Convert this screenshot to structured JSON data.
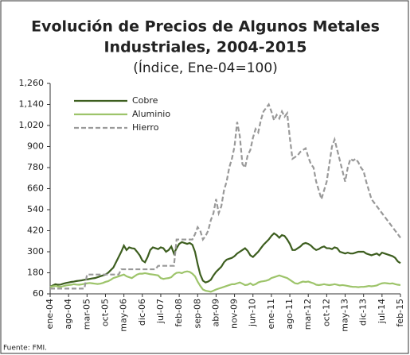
{
  "chart_data": {
    "type": "line",
    "title": [
      "Evolución de Precios de Algunos Metales",
      "Industriales, 2004-2015"
    ],
    "subtitle": "(Índice, Ene-04=100)",
    "source": "Fuente: FMI.",
    "legend": "upper left",
    "categories": [
      "ene-04",
      null,
      null,
      null,
      null,
      null,
      null,
      "ago-04",
      null,
      null,
      null,
      null,
      null,
      null,
      "mar-05",
      null,
      null,
      null,
      null,
      null,
      null,
      "oct-05",
      null,
      null,
      null,
      null,
      null,
      null,
      "may-06",
      null,
      null,
      null,
      null,
      null,
      null,
      "dic-06",
      null,
      null,
      null,
      null,
      null,
      null,
      "jul-07",
      null,
      null,
      null,
      null,
      null,
      null,
      "feb-08",
      null,
      null,
      null,
      null,
      null,
      null,
      "sep-08",
      null,
      null,
      null,
      null,
      null,
      null,
      "abr-09",
      null,
      null,
      null,
      null,
      null,
      null,
      "nov-09",
      null,
      null,
      null,
      null,
      null,
      null,
      "jun-10",
      null,
      null,
      null,
      null,
      null,
      null,
      "ene-11",
      null,
      null,
      null,
      null,
      null,
      null,
      "ago-11",
      null,
      null,
      null,
      null,
      null,
      null,
      "mar-12",
      null,
      null,
      null,
      null,
      null,
      null,
      "oct-12",
      null,
      null,
      null,
      null,
      null,
      null,
      "may-13",
      null,
      null,
      null,
      null,
      null,
      null,
      "dic-13",
      null,
      null,
      null,
      null,
      null,
      null,
      "jul-14",
      null,
      null,
      null,
      null,
      null,
      null,
      "feb-15"
    ],
    "series": [
      {
        "name": "Cobre",
        "color": "#3d5e1f",
        "dash": false,
        "values": [
          100,
          108,
          115,
          112,
          113,
          118,
          122,
          125,
          128,
          130,
          133,
          135,
          137,
          140,
          142,
          145,
          148,
          150,
          155,
          160,
          165,
          170,
          180,
          195,
          210,
          240,
          270,
          300,
          335,
          310,
          325,
          320,
          318,
          300,
          280,
          250,
          240,
          270,
          310,
          325,
          320,
          315,
          325,
          320,
          300,
          310,
          330,
          290,
          320,
          345,
          355,
          350,
          345,
          350,
          340,
          300,
          230,
          170,
          135,
          125,
          130,
          140,
          165,
          185,
          200,
          215,
          240,
          255,
          260,
          265,
          275,
          290,
          300,
          310,
          320,
          305,
          280,
          270,
          285,
          300,
          320,
          340,
          355,
          370,
          390,
          405,
          395,
          380,
          395,
          390,
          370,
          345,
          310,
          310,
          320,
          330,
          345,
          350,
          345,
          335,
          320,
          310,
          315,
          325,
          330,
          320,
          320,
          315,
          325,
          320,
          300,
          295,
          290,
          295,
          290,
          290,
          295,
          300,
          300,
          300,
          290,
          285,
          280,
          285,
          290,
          280,
          295,
          290,
          285,
          280,
          275,
          265,
          245,
          235
        ]
      },
      {
        "name": "Aluminio",
        "color": "#9dc46a",
        "dash": false,
        "values": [
          100,
          103,
          105,
          102,
          100,
          104,
          108,
          110,
          112,
          115,
          113,
          112,
          114,
          117,
          120,
          122,
          120,
          118,
          116,
          118,
          122,
          128,
          132,
          140,
          150,
          155,
          160,
          165,
          170,
          160,
          155,
          150,
          160,
          170,
          175,
          175,
          178,
          175,
          172,
          170,
          168,
          165,
          150,
          145,
          148,
          150,
          155,
          170,
          180,
          182,
          178,
          185,
          188,
          185,
          175,
          160,
          130,
          105,
          85,
          78,
          75,
          72,
          78,
          85,
          90,
          95,
          100,
          105,
          110,
          115,
          115,
          120,
          125,
          118,
          110,
          112,
          120,
          110,
          115,
          125,
          130,
          132,
          135,
          140,
          150,
          155,
          160,
          165,
          160,
          155,
          150,
          140,
          130,
          120,
          118,
          125,
          130,
          128,
          130,
          125,
          120,
          112,
          110,
          112,
          115,
          112,
          110,
          112,
          115,
          112,
          108,
          110,
          108,
          105,
          102,
          100,
          100,
          98,
          100,
          100,
          102,
          105,
          103,
          105,
          108,
          115,
          120,
          122,
          120,
          118,
          120,
          115,
          112,
          110
        ]
      },
      {
        "name": "Hierro",
        "color": "#999999",
        "dash": true,
        "values": [
          90,
          90,
          90,
          90,
          90,
          90,
          90,
          90,
          90,
          90,
          90,
          90,
          90,
          90,
          170,
          170,
          170,
          170,
          170,
          170,
          170,
          170,
          170,
          170,
          170,
          170,
          170,
          200,
          200,
          200,
          200,
          200,
          200,
          200,
          200,
          200,
          200,
          200,
          200,
          200,
          200,
          220,
          220,
          220,
          220,
          220,
          220,
          220,
          370,
          370,
          370,
          370,
          370,
          370,
          370,
          400,
          440,
          420,
          370,
          390,
          420,
          480,
          520,
          600,
          520,
          560,
          650,
          700,
          780,
          830,
          900,
          1040,
          960,
          800,
          780,
          850,
          880,
          950,
          1000,
          980,
          1050,
          1100,
          1120,
          1140,
          1100,
          1050,
          1080,
          1060,
          1100,
          1070,
          1090,
          950,
          830,
          840,
          850,
          870,
          880,
          890,
          840,
          800,
          780,
          700,
          650,
          600,
          650,
          700,
          800,
          900,
          940,
          880,
          820,
          760,
          700,
          780,
          830,
          820,
          830,
          810,
          780,
          760,
          700,
          650,
          600,
          580,
          560,
          540,
          520,
          500,
          480,
          460,
          440,
          420,
          400,
          380
        ]
      }
    ],
    "ylim": [
      60,
      1260
    ],
    "yticks": [
      60,
      180,
      300,
      420,
      540,
      660,
      780,
      900,
      {
        "value": 1020,
        "label": "1,020"
      },
      {
        "value": 1140,
        "label": "1,140"
      },
      {
        "value": 1260,
        "label": "1,260"
      }
    ]
  }
}
